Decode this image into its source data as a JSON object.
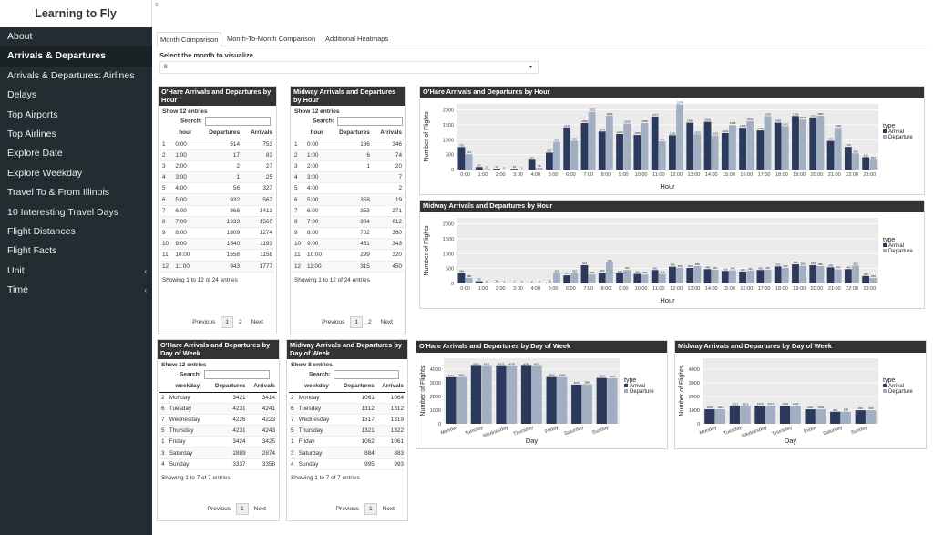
{
  "app": {
    "title": "Learning to Fly"
  },
  "sidebar": {
    "items": [
      {
        "label": "About",
        "active": false
      },
      {
        "label": "Arrivals & Departures",
        "active": true
      },
      {
        "label": "Arrivals & Departures: Airlines",
        "active": false
      },
      {
        "label": "Delays",
        "active": false
      },
      {
        "label": "Top Airports",
        "active": false
      },
      {
        "label": "Top Airlines",
        "active": false
      },
      {
        "label": "Explore Date",
        "active": false
      },
      {
        "label": "Explore Weekday",
        "active": false
      },
      {
        "label": "Travel To & From Illinois",
        "active": false
      },
      {
        "label": "10 Interesting Travel Days",
        "active": false
      },
      {
        "label": "Flight Distances",
        "active": false
      },
      {
        "label": "Flight Facts",
        "active": false
      },
      {
        "label": "Unit",
        "active": false,
        "expandable": true
      },
      {
        "label": "Time",
        "active": false,
        "expandable": true
      }
    ]
  },
  "topbar": {
    "toggle": "≡"
  },
  "tabs": [
    "Month Comparison",
    "Month-To-Month Comparison",
    "Additional Heatmaps"
  ],
  "month_select": {
    "label": "Select the month to visualize",
    "value": "8"
  },
  "tables": {
    "ohare_hour": {
      "title": "O'Hare Arrivals and Departures by Hour",
      "length_label": "Show 12 entries",
      "search_label": "Search:",
      "columns": [
        "",
        "hour",
        "Departures",
        "Arrivals"
      ],
      "rows": [
        [
          "1",
          "0:00",
          "514",
          "753"
        ],
        [
          "2",
          "1:00",
          "17",
          "83"
        ],
        [
          "3",
          "2:00",
          "2",
          "27"
        ],
        [
          "4",
          "3:00",
          "1",
          "25"
        ],
        [
          "5",
          "4:00",
          "56",
          "327"
        ],
        [
          "6",
          "5:00",
          "932",
          "567"
        ],
        [
          "7",
          "6:00",
          "968",
          "1413"
        ],
        [
          "8",
          "7:00",
          "1933",
          "1560"
        ],
        [
          "9",
          "8:00",
          "1809",
          "1274"
        ],
        [
          "10",
          "9:00",
          "1540",
          "1193"
        ],
        [
          "11",
          "10:00",
          "1558",
          "1158"
        ],
        [
          "12",
          "11:00",
          "943",
          "1777"
        ]
      ],
      "info": "Showing 1 to 12 of 24 entries",
      "pager": [
        "Previous",
        "1",
        "2",
        "Next"
      ]
    },
    "midway_hour": {
      "title": "Midway Arrivals and Departures by Hour",
      "length_label": "Show 12 entries",
      "search_label": "Search:",
      "columns": [
        "",
        "hour",
        "Departures",
        "Arrivals"
      ],
      "rows": [
        [
          "1",
          "0:00",
          "186",
          "346"
        ],
        [
          "2",
          "1:00",
          "6",
          "74"
        ],
        [
          "3",
          "2:00",
          "1",
          "20"
        ],
        [
          "4",
          "3:00",
          "",
          "7"
        ],
        [
          "5",
          "4:00",
          "",
          "2"
        ],
        [
          "6",
          "5:00",
          "358",
          "19"
        ],
        [
          "7",
          "6:00",
          "353",
          "271"
        ],
        [
          "8",
          "7:00",
          "304",
          "612"
        ],
        [
          "9",
          "8:00",
          "702",
          "360"
        ],
        [
          "10",
          "9:00",
          "451",
          "343"
        ],
        [
          "11",
          "10:00",
          "299",
          "320"
        ],
        [
          "12",
          "11:00",
          "315",
          "450"
        ]
      ],
      "info": "Showing 1 to 12 of 24 entries",
      "pager": [
        "Previous",
        "1",
        "2",
        "Next"
      ]
    },
    "ohare_day": {
      "title": "O'Hare Arrivals and Departures by Day of Week",
      "length_label": "Show 12 entries",
      "search_label": "Search:",
      "columns": [
        "",
        "weekday",
        "Departures",
        "Arrivals"
      ],
      "rows": [
        [
          "2",
          "Monday",
          "3421",
          "3414"
        ],
        [
          "6",
          "Tuesday",
          "4231",
          "4241"
        ],
        [
          "7",
          "Wednesday",
          "4226",
          "4223"
        ],
        [
          "5",
          "Thursday",
          "4231",
          "4243"
        ],
        [
          "1",
          "Friday",
          "3424",
          "3425"
        ],
        [
          "3",
          "Saturday",
          "2889",
          "2874"
        ],
        [
          "4",
          "Sunday",
          "3337",
          "3358"
        ]
      ],
      "info": "Showing 1 to 7 of 7 entries",
      "pager": [
        "Previous",
        "1",
        "Next"
      ]
    },
    "midway_day": {
      "title": "Midway Arrivals and Departures by Day of Week",
      "length_label": "Show 8 entries",
      "search_label": "Search:",
      "columns": [
        "",
        "weekday",
        "Departures",
        "Arrivals"
      ],
      "rows": [
        [
          "2",
          "Monday",
          "1061",
          "1064"
        ],
        [
          "6",
          "Tuesday",
          "1312",
          "1312"
        ],
        [
          "7",
          "Wednesday",
          "1317",
          "1319"
        ],
        [
          "5",
          "Thursday",
          "1321",
          "1322"
        ],
        [
          "1",
          "Friday",
          "1062",
          "1061"
        ],
        [
          "3",
          "Saturday",
          "884",
          "883"
        ],
        [
          "4",
          "Sunday",
          "995",
          "993"
        ]
      ],
      "info": "Showing 1 to 7 of 7 entries",
      "pager": [
        "Previous",
        "1",
        "Next"
      ]
    }
  },
  "chart_data": [
    {
      "id": "ohare_hour_chart",
      "type": "bar",
      "title": "O'Hare Arrivals and Departures by Hour",
      "xlabel": "Hour",
      "ylabel": "Number of Flights",
      "ylim": [
        0,
        2200
      ],
      "yticks": [
        0,
        500,
        1000,
        1500,
        2000
      ],
      "categories": [
        "0:00",
        "1:00",
        "2:00",
        "3:00",
        "4:00",
        "5:00",
        "6:00",
        "7:00",
        "8:00",
        "9:00",
        "10:00",
        "11:00",
        "12:00",
        "13:00",
        "14:00",
        "15:00",
        "16:00",
        "17:00",
        "18:00",
        "19:00",
        "20:00",
        "21:00",
        "22:00",
        "23:00"
      ],
      "legend_title": "type",
      "series": [
        {
          "name": "Arrival",
          "values": [
            753,
            83,
            27,
            25,
            327,
            567,
            1413,
            1560,
            1274,
            1193,
            1158,
            1777,
            1150,
            1569,
            1600,
            1224,
            1400,
            1311,
            1569,
            1794,
            1721,
            960,
            760,
            417
          ]
        },
        {
          "name": "Departure",
          "values": [
            514,
            17,
            2,
            1,
            56,
            932,
            968,
            1933,
            1809,
            1540,
            1558,
            943,
            2178,
            1183,
            1143,
            1490,
            1622,
            1790,
            1451,
            1675,
            1802,
            1400,
            540,
            333
          ]
        }
      ],
      "grid": true,
      "legend": "right"
    },
    {
      "id": "midway_hour_chart",
      "type": "bar",
      "title": "Midway Arrivals and Departures by Hour",
      "xlabel": "Hour",
      "ylabel": "Number of Flights",
      "ylim": [
        0,
        2200
      ],
      "yticks": [
        0,
        500,
        1000,
        1500,
        2000
      ],
      "categories": [
        "0:00",
        "1:00",
        "2:00",
        "3:00",
        "4:00",
        "5:00",
        "6:00",
        "7:00",
        "8:00",
        "9:00",
        "10:00",
        "11:00",
        "12:00",
        "13:00",
        "14:00",
        "15:00",
        "16:00",
        "17:00",
        "18:00",
        "19:00",
        "20:00",
        "21:00",
        "22:00",
        "23:00"
      ],
      "legend_title": "type",
      "series": [
        {
          "name": "Arrival",
          "values": [
            346,
            74,
            20,
            7,
            2,
            19,
            271,
            612,
            360,
            343,
            320,
            450,
            560,
            520,
            480,
            420,
            400,
            450,
            570,
            640,
            610,
            540,
            480,
            250
          ]
        },
        {
          "name": "Departure",
          "values": [
            186,
            6,
            1,
            0,
            0,
            358,
            353,
            304,
            702,
            451,
            299,
            315,
            520,
            580,
            460,
            440,
            430,
            460,
            520,
            590,
            580,
            470,
            600,
            180
          ]
        }
      ],
      "grid": true,
      "legend": "right"
    },
    {
      "id": "ohare_day_chart",
      "type": "bar",
      "title": "O'Hare Arrivals and Departures by Day of Week",
      "xlabel": "Day",
      "ylabel": "Number of Flights",
      "ylim": [
        0,
        4800
      ],
      "yticks": [
        0,
        1000,
        2000,
        3000,
        4000
      ],
      "categories": [
        "Monday",
        "Tuesday",
        "Wednesday",
        "Thursday",
        "Friday",
        "Saturday",
        "Sunday"
      ],
      "legend_title": "type",
      "series": [
        {
          "name": "Arrival",
          "values": [
            3414,
            4241,
            4223,
            4243,
            3425,
            2874,
            3358
          ]
        },
        {
          "name": "Departure",
          "values": [
            3421,
            4231,
            4226,
            4231,
            3424,
            2889,
            3337
          ]
        }
      ],
      "grid": true,
      "legend": "right"
    },
    {
      "id": "midway_day_chart",
      "type": "bar",
      "title": "Midway Arrivals and Departures by Day of Week",
      "xlabel": "Day",
      "ylabel": "Number of Flights",
      "ylim": [
        0,
        4800
      ],
      "yticks": [
        0,
        1000,
        2000,
        3000,
        4000
      ],
      "categories": [
        "Monday",
        "Tuesday",
        "Wednesday",
        "Thursday",
        "Friday",
        "Saturday",
        "Sunday"
      ],
      "legend_title": "type",
      "series": [
        {
          "name": "Arrival",
          "values": [
            1064,
            1312,
            1319,
            1322,
            1061,
            883,
            993
          ]
        },
        {
          "name": "Departure",
          "values": [
            1061,
            1312,
            1317,
            1321,
            1062,
            884,
            995
          ]
        }
      ],
      "grid": true,
      "legend": "right"
    }
  ],
  "colors": {
    "arrival": "#2b3a5c",
    "departure": "#a2afc2",
    "panel": "#ebebeb",
    "sidebar": "#222d32",
    "box_header": "#333333"
  }
}
